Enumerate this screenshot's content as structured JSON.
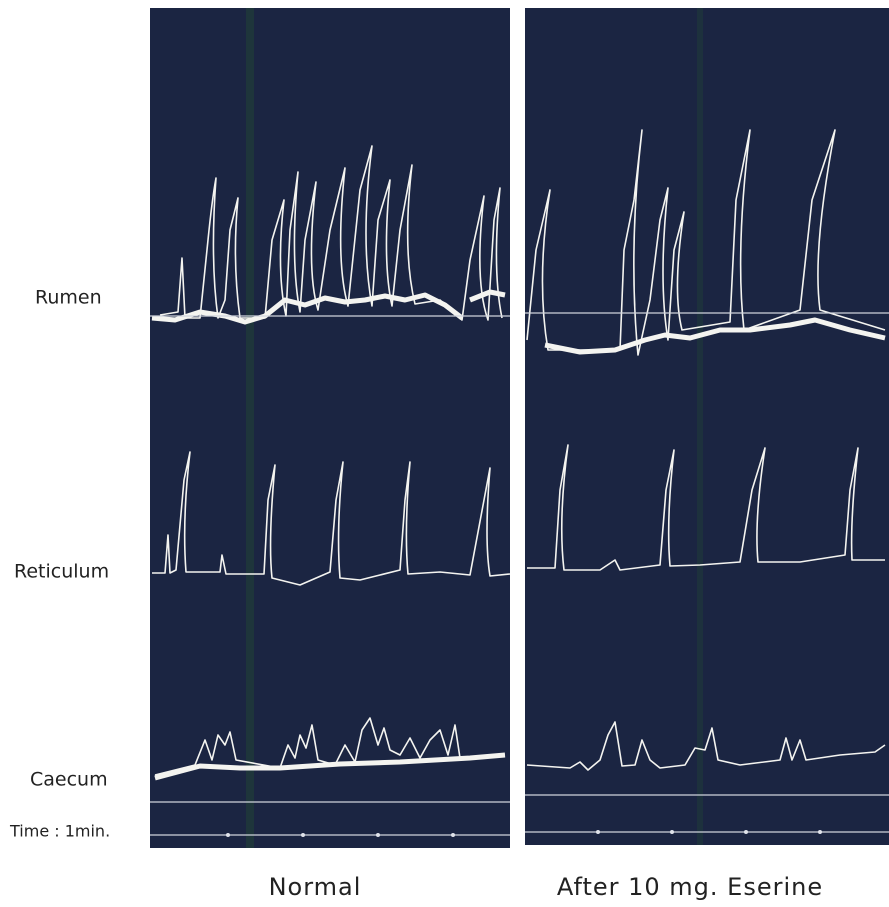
{
  "row_labels": [
    "Rumen",
    "Reticulum",
    "Caecum",
    "Time : 1min."
  ],
  "panel_captions": [
    "Normal",
    "After 10 mg. Eserine"
  ]
}
